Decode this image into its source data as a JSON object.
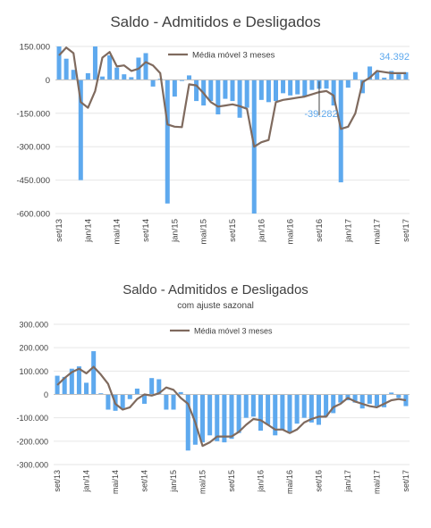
{
  "chart_data": [
    {
      "type": "bar",
      "title": "Saldo - Admitidos e Desligados",
      "subtitle": "",
      "ylim": [
        -600000,
        150000
      ],
      "yticks": [
        150000,
        0,
        -150000,
        -300000,
        -450000,
        -600000
      ],
      "ytick_labels": [
        "150.000",
        "0",
        "-150.000",
        "-300.000",
        "-450.000",
        "-600.000"
      ],
      "categories": [
        "set/13",
        "out/13",
        "nov/13",
        "dez/13",
        "jan/14",
        "fev/14",
        "mar/14",
        "abr/14",
        "mai/14",
        "jun/14",
        "jul/14",
        "ago/14",
        "set/14",
        "out/14",
        "nov/14",
        "dez/14",
        "jan/15",
        "fev/15",
        "mar/15",
        "abr/15",
        "mai/15",
        "jun/15",
        "jul/15",
        "ago/15",
        "set/15",
        "out/15",
        "nov/15",
        "dez/15",
        "jan/16",
        "fev/16",
        "mar/16",
        "abr/16",
        "mai/16",
        "jun/16",
        "jul/16",
        "ago/16",
        "set/16",
        "out/16",
        "nov/16",
        "dez/16",
        "jan/17",
        "fev/17",
        "mar/17",
        "abr/17",
        "mai/17",
        "jun/17",
        "jul/17",
        "ago/17",
        "set/17"
      ],
      "xtick_labels": [
        "set/13",
        "jan/14",
        "mai/14",
        "set/14",
        "jan/15",
        "mai/15",
        "set/15",
        "jan/16",
        "mai/16",
        "set/16",
        "jan/17",
        "mai/17",
        "set/17"
      ],
      "xtick_indices": [
        0,
        4,
        8,
        12,
        16,
        20,
        24,
        28,
        32,
        36,
        40,
        44,
        48
      ],
      "series": [
        {
          "name": "",
          "type": "bar",
          "color": "#5ea9ee",
          "values": [
            150000,
            95000,
            45000,
            -450000,
            30000,
            150000,
            15000,
            110000,
            55000,
            25000,
            12000,
            100000,
            120000,
            -30000,
            5000,
            -555000,
            -75000,
            -5000,
            20000,
            -95000,
            -115000,
            -95000,
            -155000,
            -85000,
            -95000,
            -170000,
            -125000,
            -600000,
            -90000,
            -100000,
            -95000,
            -60000,
            -70000,
            -65000,
            -75000,
            -45000,
            -40000,
            -39282,
            -115000,
            -460000,
            -35000,
            35000,
            -60000,
            60000,
            35000,
            10000,
            40000,
            25000,
            34392
          ]
        },
        {
          "name": "Média móvel 3 meses",
          "type": "line",
          "color": "#7f6a5e",
          "values": [
            110000,
            145000,
            120000,
            -100000,
            -125000,
            -50000,
            100000,
            125000,
            60000,
            65000,
            40000,
            50000,
            80000,
            65000,
            30000,
            -200000,
            -210000,
            -212000,
            -20000,
            -25000,
            -60000,
            -100000,
            -120000,
            -115000,
            -110000,
            -118000,
            -130000,
            -300000,
            -280000,
            -270000,
            -100000,
            -90000,
            -85000,
            -80000,
            -75000,
            -65000,
            -55000,
            -50000,
            -70000,
            -220000,
            -210000,
            -150000,
            -10000,
            10000,
            40000,
            35000,
            30000,
            30000,
            30000
          ]
        }
      ],
      "annotations": [
        {
          "text": "34.392",
          "category": "set/17",
          "value": 34392
        },
        {
          "text": "-39.282",
          "category": "set/16",
          "value": -39282
        }
      ],
      "legend": "top-right"
    },
    {
      "type": "bar",
      "title": "Saldo - Admitidos e Desligados",
      "subtitle": "com ajuste sazonal",
      "ylim": [
        -300000,
        300000
      ],
      "yticks": [
        300000,
        200000,
        100000,
        0,
        -100000,
        -200000,
        -300000
      ],
      "ytick_labels": [
        "300.000",
        "200.000",
        "100.000",
        "0",
        "-100.000",
        "-200.000",
        "-300.000"
      ],
      "categories": [
        "set/13",
        "out/13",
        "nov/13",
        "dez/13",
        "jan/14",
        "fev/14",
        "mar/14",
        "abr/14",
        "mai/14",
        "jun/14",
        "jul/14",
        "ago/14",
        "set/14",
        "out/14",
        "nov/14",
        "dez/14",
        "jan/15",
        "fev/15",
        "mar/15",
        "abr/15",
        "mai/15",
        "jun/15",
        "jul/15",
        "ago/15",
        "set/15",
        "out/15",
        "nov/15",
        "dez/15",
        "jan/16",
        "fev/16",
        "mar/16",
        "abr/16",
        "mai/16",
        "jun/16",
        "jul/16",
        "ago/16",
        "set/16",
        "out/16",
        "nov/16",
        "dez/16",
        "jan/17",
        "fev/17",
        "mar/17",
        "abr/17",
        "mai/17",
        "jun/17",
        "jul/17",
        "ago/17",
        "set/17"
      ],
      "xtick_labels": [
        "set/13",
        "jan/14",
        "mai/14",
        "set/14",
        "jan/15",
        "mai/15",
        "set/15",
        "jan/16",
        "mai/16",
        "set/16",
        "jan/17",
        "mai/17",
        "set/17"
      ],
      "xtick_indices": [
        0,
        4,
        8,
        12,
        16,
        20,
        24,
        28,
        32,
        36,
        40,
        44,
        48
      ],
      "series": [
        {
          "name": "",
          "type": "bar",
          "color": "#5ea9ee",
          "values": [
            80000,
            75000,
            110000,
            120000,
            50000,
            185000,
            5000,
            -65000,
            -70000,
            -60000,
            -20000,
            25000,
            -40000,
            70000,
            65000,
            -65000,
            -65000,
            10000,
            -240000,
            -215000,
            -205000,
            -175000,
            -200000,
            -205000,
            -190000,
            -165000,
            -100000,
            -95000,
            -155000,
            -130000,
            -175000,
            -150000,
            -160000,
            -125000,
            -100000,
            -120000,
            -130000,
            -95000,
            -80000,
            -35000,
            -25000,
            -35000,
            -60000,
            -40000,
            -50000,
            -55000,
            8000,
            -15000,
            -50000
          ]
        },
        {
          "name": "Média móvel 3 meses",
          "type": "line",
          "color": "#7f6a5e",
          "values": [
            40000,
            70000,
            95000,
            110000,
            90000,
            118000,
            85000,
            45000,
            -40000,
            -65000,
            -55000,
            -20000,
            0,
            -5000,
            5000,
            30000,
            20000,
            -15000,
            -40000,
            -120000,
            -220000,
            -205000,
            -180000,
            -180000,
            -180000,
            -160000,
            -130000,
            -105000,
            -110000,
            -130000,
            -150000,
            -150000,
            -165000,
            -150000,
            -120000,
            -105000,
            -95000,
            -95000,
            -55000,
            -40000,
            -15000,
            -30000,
            -40000,
            -50000,
            -55000,
            -40000,
            -25000,
            -20000,
            -25000
          ]
        }
      ],
      "annotations": [],
      "legend": "top-right"
    }
  ]
}
